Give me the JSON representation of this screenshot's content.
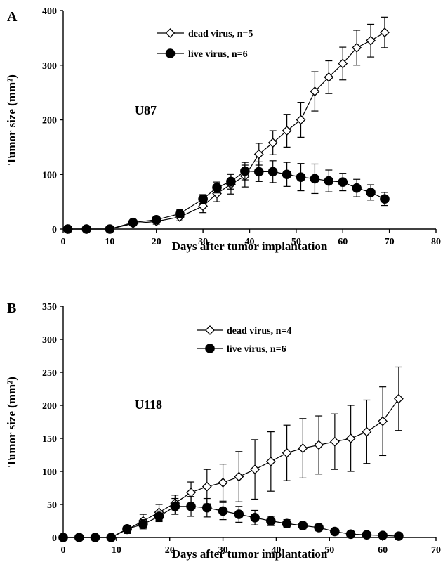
{
  "chart_data": [
    {
      "type": "line",
      "panel_label": "A",
      "annotation": "U87",
      "xlabel": "Days after tumor implantation",
      "ylabel": "Tumor size (mm²)",
      "xlim": [
        0,
        80
      ],
      "ylim": [
        0,
        400
      ],
      "xticks": [
        0,
        10,
        20,
        30,
        40,
        50,
        60,
        70,
        80
      ],
      "yticks": [
        0,
        100,
        200,
        300,
        400
      ],
      "grid": false,
      "legend_position": "top-center",
      "series": [
        {
          "name": "dead virus, n=5",
          "marker": "open-diamond",
          "x": [
            1,
            5,
            10,
            15,
            20,
            25,
            30,
            33,
            36,
            39,
            42,
            45,
            48,
            51,
            54,
            57,
            60,
            63,
            66,
            69
          ],
          "y": [
            0,
            0,
            0,
            10,
            14,
            22,
            42,
            65,
            82,
            97,
            137,
            158,
            180,
            200,
            252,
            278,
            303,
            332,
            345,
            360
          ],
          "err": [
            0,
            0,
            0,
            4,
            5,
            7,
            12,
            15,
            18,
            20,
            20,
            22,
            30,
            32,
            36,
            30,
            30,
            32,
            30,
            28
          ]
        },
        {
          "name": "live virus, n=6",
          "marker": "filled-circle",
          "x": [
            1,
            5,
            10,
            15,
            20,
            25,
            30,
            33,
            36,
            39,
            42,
            45,
            48,
            51,
            54,
            57,
            60,
            63,
            66,
            69
          ],
          "y": [
            0,
            0,
            0,
            12,
            17,
            28,
            55,
            76,
            87,
            106,
            105,
            105,
            100,
            95,
            92,
            88,
            86,
            75,
            67,
            55
          ],
          "err": [
            0,
            0,
            0,
            4,
            5,
            8,
            8,
            10,
            14,
            16,
            18,
            20,
            22,
            25,
            27,
            20,
            16,
            16,
            14,
            12
          ]
        }
      ]
    },
    {
      "type": "line",
      "panel_label": "B",
      "annotation": "U118",
      "xlabel": "Days after tumor implantation",
      "ylabel": "Tumor size (mm²)",
      "xlim": [
        0,
        70
      ],
      "ylim": [
        0,
        350
      ],
      "xticks": [
        0,
        10,
        20,
        30,
        40,
        50,
        60,
        70
      ],
      "yticks": [
        0,
        50,
        100,
        150,
        200,
        250,
        300,
        350
      ],
      "grid": false,
      "legend_position": "top-center",
      "series": [
        {
          "name": "dead virus, n=4",
          "marker": "open-diamond",
          "x": [
            0,
            3,
            6,
            9,
            12,
            15,
            18,
            21,
            24,
            27,
            30,
            33,
            36,
            39,
            42,
            45,
            48,
            51,
            54,
            57,
            60,
            63
          ],
          "y": [
            0,
            0,
            0,
            0,
            12,
            25,
            38,
            52,
            68,
            77,
            83,
            92,
            103,
            115,
            128,
            135,
            140,
            145,
            150,
            160,
            176,
            210
          ],
          "err": [
            0,
            0,
            0,
            0,
            6,
            10,
            12,
            12,
            16,
            26,
            28,
            38,
            45,
            45,
            42,
            45,
            44,
            42,
            50,
            48,
            52,
            48
          ]
        },
        {
          "name": "live virus, n=6",
          "marker": "filled-circle",
          "x": [
            0,
            3,
            6,
            9,
            12,
            15,
            18,
            21,
            24,
            27,
            30,
            33,
            36,
            39,
            42,
            45,
            48,
            51,
            54,
            57,
            60,
            63
          ],
          "y": [
            0,
            0,
            0,
            0,
            13,
            20,
            32,
            47,
            47,
            45,
            40,
            35,
            30,
            25,
            21,
            18,
            15,
            9,
            5,
            4,
            3,
            2
          ],
          "err": [
            0,
            0,
            0,
            0,
            5,
            7,
            8,
            12,
            15,
            14,
            13,
            12,
            11,
            7,
            6,
            5,
            5,
            4,
            2,
            2,
            2,
            2
          ]
        }
      ]
    }
  ]
}
